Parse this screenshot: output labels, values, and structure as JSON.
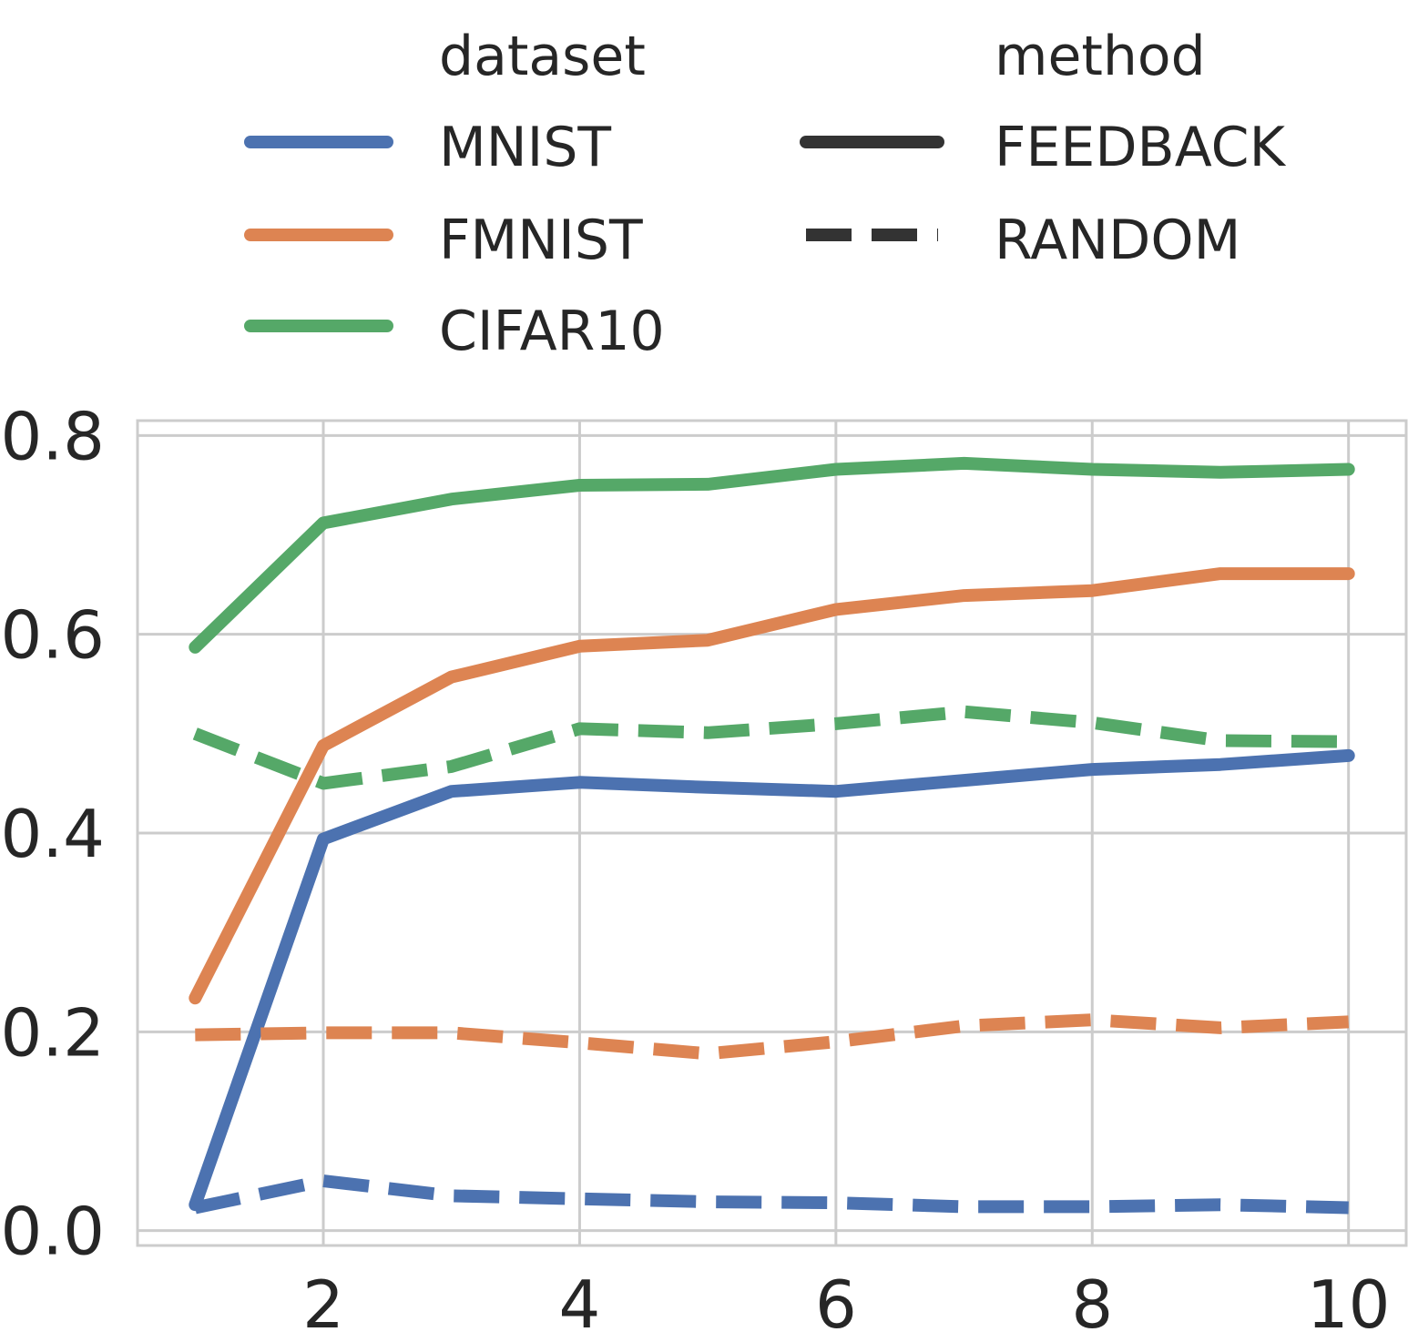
{
  "chart_data": {
    "type": "line",
    "title": "",
    "xlabel": "",
    "ylabel": "",
    "x": [
      1,
      2,
      3,
      4,
      5,
      6,
      7,
      8,
      9,
      10
    ],
    "xlim": [
      0.55,
      10.45
    ],
    "ylim": [
      -0.015,
      0.815
    ],
    "xticks": [
      2,
      4,
      6,
      8,
      10
    ],
    "xtick_labels": [
      "2",
      "4",
      "6",
      "8",
      "10"
    ],
    "yticks": [
      0.0,
      0.2,
      0.4,
      0.6,
      0.8
    ],
    "ytick_labels": [
      "0.0",
      "0.2",
      "0.4",
      "0.6",
      "0.8"
    ],
    "grid": true,
    "legend": {
      "placement": "top",
      "hue_title": "dataset",
      "style_title": "method",
      "datasets": [
        {
          "name": "MNIST",
          "color": "#4c72b0"
        },
        {
          "name": "FMNIST",
          "color": "#dd8452"
        },
        {
          "name": "CIFAR10",
          "color": "#55a868"
        }
      ],
      "methods": [
        {
          "name": "FEEDBACK",
          "style": "solid"
        },
        {
          "name": "RANDOM",
          "style": "dashed"
        }
      ],
      "marker_color": "#333333"
    },
    "series": [
      {
        "dataset": "MNIST",
        "method": "FEEDBACK",
        "color": "#4c72b0",
        "style": "solid",
        "values": [
          0.026,
          0.394,
          0.442,
          0.451,
          0.446,
          0.442,
          0.453,
          0.464,
          0.469,
          0.478
        ]
      },
      {
        "dataset": "MNIST",
        "method": "RANDOM",
        "color": "#4c72b0",
        "style": "dashed",
        "values": [
          0.023,
          0.05,
          0.035,
          0.032,
          0.029,
          0.028,
          0.024,
          0.024,
          0.026,
          0.023
        ]
      },
      {
        "dataset": "FMNIST",
        "method": "FEEDBACK",
        "color": "#dd8452",
        "style": "solid",
        "values": [
          0.234,
          0.488,
          0.557,
          0.588,
          0.594,
          0.625,
          0.639,
          0.644,
          0.661,
          0.661
        ]
      },
      {
        "dataset": "FMNIST",
        "method": "RANDOM",
        "color": "#dd8452",
        "style": "dashed",
        "values": [
          0.197,
          0.199,
          0.199,
          0.189,
          0.178,
          0.19,
          0.206,
          0.212,
          0.204,
          0.21
        ]
      },
      {
        "dataset": "CIFAR10",
        "method": "FEEDBACK",
        "color": "#55a868",
        "style": "solid",
        "values": [
          0.587,
          0.712,
          0.736,
          0.75,
          0.751,
          0.766,
          0.772,
          0.766,
          0.763,
          0.766
        ]
      },
      {
        "dataset": "CIFAR10",
        "method": "RANDOM",
        "color": "#55a868",
        "style": "dashed",
        "values": [
          0.5,
          0.45,
          0.467,
          0.505,
          0.501,
          0.51,
          0.522,
          0.511,
          0.493,
          0.492
        ]
      }
    ]
  }
}
